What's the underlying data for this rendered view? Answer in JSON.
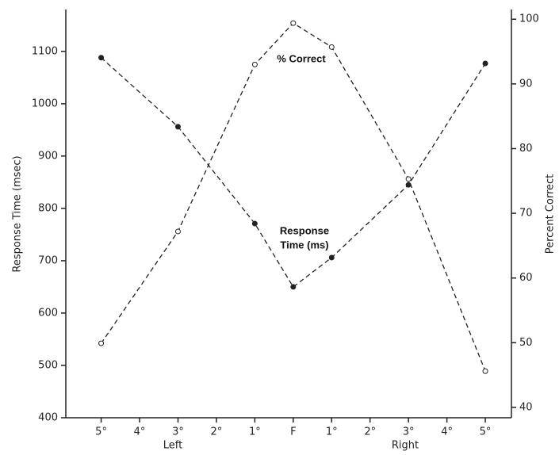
{
  "chart_data": {
    "type": "line",
    "x": [
      -5,
      -3,
      -1,
      0,
      1,
      3,
      5
    ],
    "xlim": [
      -5.92,
      5.68
    ],
    "xticks": [
      {
        "value": -5,
        "label": "5°"
      },
      {
        "value": -4,
        "label": "4°"
      },
      {
        "value": -3,
        "label": "3°"
      },
      {
        "value": -2,
        "label": "2°"
      },
      {
        "value": -1,
        "label": "1°"
      },
      {
        "value": 0,
        "label": "F"
      },
      {
        "value": 1,
        "label": "1°"
      },
      {
        "value": 2,
        "label": "2°"
      },
      {
        "value": 3,
        "label": "3°"
      },
      {
        "value": 4,
        "label": "4°"
      },
      {
        "value": 5,
        "label": "5°"
      }
    ],
    "x_annotations": [
      "Left",
      "Right"
    ],
    "ylabel": "Response Time (msec)",
    "ylim": [
      400,
      1180
    ],
    "yticks": [
      400,
      500,
      600,
      700,
      800,
      900,
      1000,
      1100
    ],
    "y2label": "Percent Correct",
    "y2lim": [
      38.4,
      101.5
    ],
    "y2ticks": [
      40,
      50,
      60,
      70,
      80,
      90,
      100
    ],
    "series": [
      {
        "name": "Response Time (ms)",
        "color": "#222222",
        "marker": "filled",
        "values": [
          1088,
          956,
          771,
          650,
          706,
          845,
          1077
        ]
      },
      {
        "name": "% Correct",
        "color": "#222222",
        "marker": "open",
        "axis": "y2",
        "values": [
          49.9,
          67.2,
          93,
          99.4,
          95.7,
          75.3,
          45.6
        ]
      }
    ],
    "annotations": [
      [
        "% Correct"
      ],
      [
        "Response",
        "Time (ms)"
      ]
    ]
  }
}
